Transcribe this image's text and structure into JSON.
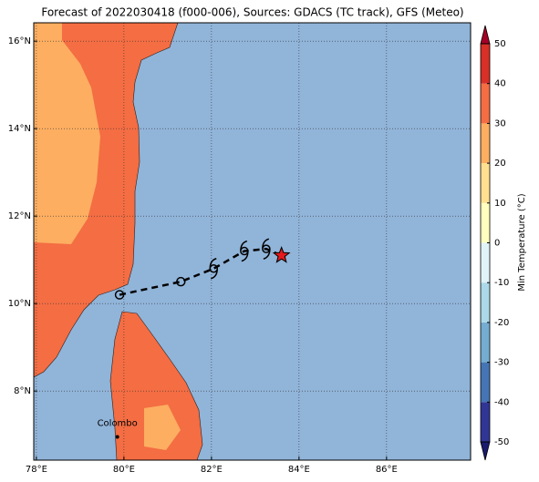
{
  "chart_data": {
    "type": "map",
    "title": "Forecast of 2022030418 (f000-006), Sources: GDACS (TC track), GFS (Meteo)",
    "xlim": [
      77.94,
      87.92
    ],
    "ylim": [
      6.42,
      16.42
    ],
    "xticks": [
      {
        "value": 78,
        "label": "78°E"
      },
      {
        "value": 80,
        "label": "80°E"
      },
      {
        "value": 82,
        "label": "82°E"
      },
      {
        "value": 84,
        "label": "84°E"
      },
      {
        "value": 86,
        "label": "86°E"
      }
    ],
    "yticks": [
      {
        "value": 8,
        "label": "8°N"
      },
      {
        "value": 10,
        "label": "10°N"
      },
      {
        "value": 12,
        "label": "12°N"
      },
      {
        "value": 14,
        "label": "14°N"
      },
      {
        "value": 16,
        "label": "16°N"
      }
    ],
    "grid": true,
    "track": {
      "lon": [
        79.9,
        81.3,
        82.05,
        82.75,
        83.25,
        83.6
      ],
      "lat": [
        10.2,
        10.5,
        10.8,
        11.2,
        11.25,
        11.1
      ],
      "markers": [
        "circle",
        "circle",
        "tc",
        "tc",
        "tc",
        "star"
      ],
      "star_color": "#e31a1c"
    },
    "city": {
      "name": "Colombo",
      "lon": 79.85,
      "lat": 6.95
    },
    "colorbar": {
      "label": "Min Temperature (°C)",
      "lim": [
        -50,
        50
      ],
      "ticks": [
        -50,
        -40,
        -30,
        -20,
        -10,
        0,
        10,
        20,
        30,
        40,
        50
      ],
      "colors": [
        "#313695",
        "#4575b4",
        "#74add1",
        "#abd9e9",
        "#e0f3f8",
        "#ffffbf",
        "#fee090",
        "#fdae61",
        "#f46d43",
        "#d73027"
      ],
      "under": "#1a1a6e",
      "over": "#a50026"
    }
  }
}
